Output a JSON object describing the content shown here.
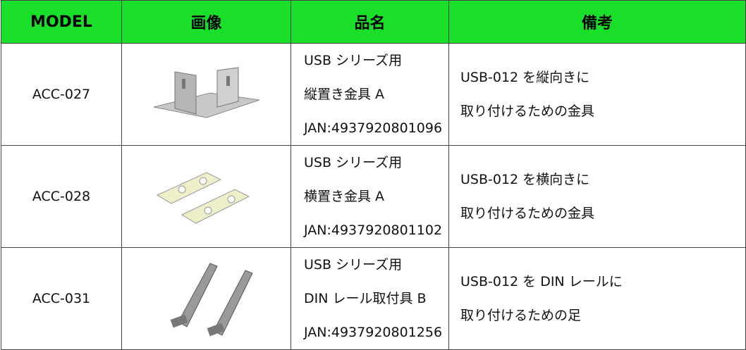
{
  "table": {
    "header": [
      "MODEL",
      "画像",
      "品名",
      "備考"
    ],
    "rows": [
      {
        "model": "ACC-027",
        "name": [
          "USB シリーズ用",
          "縦置き金具 A",
          "JAN:4937920801096"
        ],
        "note": [
          "USB-012 を縦向きに",
          "取り付けるための金具"
        ]
      },
      {
        "model": "ACC-028",
        "name": [
          "USB シリーズ用",
          "横置き金具 A",
          "JAN:4937920801102"
        ],
        "note": [
          "USB-012 を横向きに",
          "取り付けるための金具"
        ]
      },
      {
        "model": "ACC-031",
        "name": [
          "USB シリーズ用",
          "DIN レール取付具 B",
          "JAN:4937920801256"
        ],
        "note": [
          "USB-012 を DIN レールに",
          "取り付けるための足"
        ]
      }
    ]
  }
}
